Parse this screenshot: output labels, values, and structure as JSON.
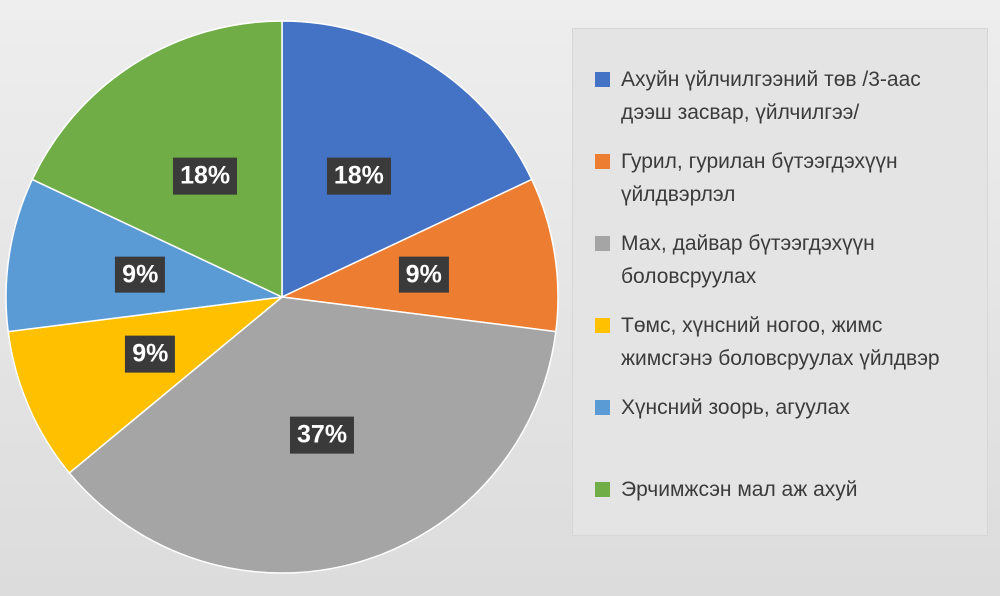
{
  "chart_data": {
    "type": "pie",
    "start_angle_deg": 0,
    "direction": "clockwise",
    "slices": [
      {
        "label": "Ахуйн үйлчилгээний төв /3-аас дээш засвар, үйлчилгээ/",
        "value": 18,
        "display": "18%",
        "color": "#4472c4"
      },
      {
        "label": "Гурил, гурилан бүтээгдэхүүн үйлдвэрлэл",
        "value": 9,
        "display": "9%",
        "color": "#ed7d31"
      },
      {
        "label": "Мах, дайвар бүтээгдэхүүн боловсруулах",
        "value": 37,
        "display": "37%",
        "color": "#a5a5a5"
      },
      {
        "label": "Төмс, хүнсний ногоо, жимс жимсгэнэ боловсруулах үйлдвэр",
        "value": 9,
        "display": "9%",
        "color": "#ffc000"
      },
      {
        "label": "Хүнсний зоорь, агуулах",
        "value": 9,
        "display": "9%",
        "color": "#5b9bd5"
      },
      {
        "label": "Эрчимжсэн мал аж ахуй",
        "value": 18,
        "display": "18%",
        "color": "#70ad47"
      }
    ],
    "legend_position": "right"
  },
  "legend": {
    "items": [
      {
        "line1": "Ахуйн үйлчилгээний төв /3-аас",
        "line2": "дээш засвар, үйлчилгээ/"
      },
      {
        "line1": "Гурил, гурилан бүтээгдэхүүн",
        "line2": "үйлдвэрлэл"
      },
      {
        "line1": "Мах, дайвар бүтээгдэхүүн",
        "line2": "боловсруулах"
      },
      {
        "line1": "Төмс, хүнсний ногоо, жимс",
        "line2": "жимсгэнэ боловсруулах үйлдвэр"
      },
      {
        "line1": "Хүнсний зоорь, агуулах",
        "line2": ""
      },
      {
        "line1": "Эрчимжсэн мал аж ахуй",
        "line2": ""
      }
    ]
  }
}
